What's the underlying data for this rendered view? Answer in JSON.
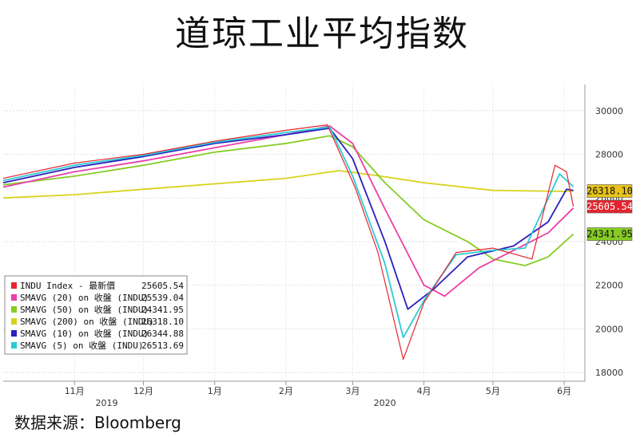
{
  "title": "道琼工业平均指数",
  "source": "数据来源：Bloomberg",
  "chart_data": {
    "type": "line",
    "y_ticks": [
      "30000",
      "28000",
      "26000",
      "24000",
      "22000",
      "20000",
      "18000"
    ],
    "y_tick_values": [
      30000,
      28000,
      26000,
      24000,
      22000,
      20000,
      18000
    ],
    "ylim": [
      17600,
      31200
    ],
    "x_ticks": [
      "11月",
      "12月",
      "1月",
      "2月",
      "3月",
      "4月",
      "5月",
      "6月"
    ],
    "x_tick_dates": [
      "2019-11-01",
      "2019-12-01",
      "2020-01-01",
      "2020-02-01",
      "2020-03-01",
      "2020-04-01",
      "2020-05-01",
      "2020-06-01"
    ],
    "xlim": [
      "2019-10-01",
      "2020-06-10"
    ],
    "year_labels": [
      {
        "text": "2019",
        "date": "2019-11-15"
      },
      {
        "text": "2020",
        "date": "2020-03-15"
      }
    ],
    "grid": true,
    "legend_position": "bottom-left",
    "legend": [
      {
        "label": "INDU Index - 最新價",
        "value": "25605.54",
        "color": "#e3262f"
      },
      {
        "label": "SMAVG (20)  on 收盤 (INDU)",
        "value": "25539.04",
        "color": "#ea3fa7"
      },
      {
        "label": "SMAVG (50)  on 收盤 (INDU)",
        "value": "24341.95",
        "color": "#86cc25"
      },
      {
        "label": "SMAVG (200) on 收盤 (INDU)",
        "value": "26318.10",
        "color": "#d8d21c"
      },
      {
        "label": "SMAVG (10)  on 收盤 (INDU)",
        "value": "26344.88",
        "color": "#2a1fbf"
      },
      {
        "label": "SMAVG (5)  on 收盤 (INDU)",
        "value": "26513.69",
        "color": "#2bcbd6"
      }
    ],
    "value_labels": [
      {
        "text": "26318.10",
        "value": 26318.1,
        "color": "#e8c31a"
      },
      {
        "text": "25605.54",
        "value": 25605.54,
        "color": "#e3262f"
      },
      {
        "text": "24341.95",
        "value": 24341.95,
        "color": "#86cc25"
      }
    ],
    "series": [
      {
        "name": "SMAVG (200) on 收盤 (INDU)",
        "color": "#d8d21c",
        "points": [
          [
            "2019-10-01",
            26000
          ],
          [
            "2019-11-01",
            26150
          ],
          [
            "2019-12-01",
            26400
          ],
          [
            "2020-01-01",
            26650
          ],
          [
            "2020-02-01",
            26900
          ],
          [
            "2020-02-24",
            27250
          ],
          [
            "2020-03-10",
            27050
          ],
          [
            "2020-04-01",
            26700
          ],
          [
            "2020-05-01",
            26350
          ],
          [
            "2020-06-01",
            26300
          ],
          [
            "2020-06-05",
            26318
          ]
        ]
      },
      {
        "name": "SMAVG (50) on 收盤 (INDU)",
        "color": "#86cc25",
        "points": [
          [
            "2019-10-01",
            26600
          ],
          [
            "2019-11-01",
            27000
          ],
          [
            "2019-12-01",
            27500
          ],
          [
            "2020-01-01",
            28100
          ],
          [
            "2020-02-01",
            28500
          ],
          [
            "2020-02-20",
            28850
          ],
          [
            "2020-03-01",
            28350
          ],
          [
            "2020-03-15",
            26700
          ],
          [
            "2020-04-01",
            25000
          ],
          [
            "2020-04-20",
            24000
          ],
          [
            "2020-05-01",
            23200
          ],
          [
            "2020-05-15",
            22900
          ],
          [
            "2020-05-25",
            23300
          ],
          [
            "2020-06-05",
            24342
          ]
        ]
      },
      {
        "name": "SMAVG (20) on 收盤 (INDU)",
        "color": "#ea3fa7",
        "points": [
          [
            "2019-10-01",
            26500
          ],
          [
            "2019-11-01",
            27200
          ],
          [
            "2019-12-01",
            27700
          ],
          [
            "2020-01-01",
            28300
          ],
          [
            "2020-02-01",
            28900
          ],
          [
            "2020-02-20",
            29300
          ],
          [
            "2020-03-01",
            28500
          ],
          [
            "2020-03-15",
            25500
          ],
          [
            "2020-04-01",
            22000
          ],
          [
            "2020-04-10",
            21500
          ],
          [
            "2020-04-25",
            22800
          ],
          [
            "2020-05-10",
            23600
          ],
          [
            "2020-05-25",
            24400
          ],
          [
            "2020-06-05",
            25539
          ]
        ]
      },
      {
        "name": "SMAVG (10) on 收盤 (INDU)",
        "color": "#2a1fbf",
        "points": [
          [
            "2019-10-01",
            26700
          ],
          [
            "2019-11-01",
            27400
          ],
          [
            "2019-12-01",
            27900
          ],
          [
            "2020-01-01",
            28500
          ],
          [
            "2020-02-01",
            28900
          ],
          [
            "2020-02-20",
            29200
          ],
          [
            "2020-03-01",
            27800
          ],
          [
            "2020-03-15",
            24000
          ],
          [
            "2020-03-25",
            20900
          ],
          [
            "2020-04-05",
            21800
          ],
          [
            "2020-04-20",
            23300
          ],
          [
            "2020-05-10",
            23800
          ],
          [
            "2020-05-25",
            24900
          ],
          [
            "2020-06-02",
            26400
          ],
          [
            "2020-06-05",
            26345
          ]
        ]
      },
      {
        "name": "SMAVG (5) on 收盤 (INDU)",
        "color": "#2bcbd6",
        "points": [
          [
            "2019-10-01",
            26800
          ],
          [
            "2019-11-01",
            27500
          ],
          [
            "2019-12-01",
            27950
          ],
          [
            "2020-01-01",
            28550
          ],
          [
            "2020-02-01",
            29000
          ],
          [
            "2020-02-20",
            29250
          ],
          [
            "2020-03-01",
            27000
          ],
          [
            "2020-03-15",
            23000
          ],
          [
            "2020-03-23",
            19600
          ],
          [
            "2020-04-01",
            21300
          ],
          [
            "2020-04-15",
            23400
          ],
          [
            "2020-05-01",
            23600
          ],
          [
            "2020-05-15",
            23700
          ],
          [
            "2020-05-30",
            27100
          ],
          [
            "2020-06-05",
            26514
          ]
        ]
      },
      {
        "name": "INDU Index - 最新價",
        "color": "#e3262f",
        "points": [
          [
            "2019-10-01",
            26900
          ],
          [
            "2019-11-01",
            27600
          ],
          [
            "2019-12-01",
            28000
          ],
          [
            "2020-01-01",
            28600
          ],
          [
            "2020-02-01",
            29100
          ],
          [
            "2020-02-19",
            29350
          ],
          [
            "2020-03-02",
            26500
          ],
          [
            "2020-03-12",
            23500
          ],
          [
            "2020-03-23",
            18600
          ],
          [
            "2020-04-01",
            21200
          ],
          [
            "2020-04-15",
            23500
          ],
          [
            "2020-05-01",
            23700
          ],
          [
            "2020-05-18",
            23200
          ],
          [
            "2020-05-28",
            27500
          ],
          [
            "2020-06-02",
            27200
          ],
          [
            "2020-06-05",
            25606
          ]
        ]
      }
    ]
  }
}
